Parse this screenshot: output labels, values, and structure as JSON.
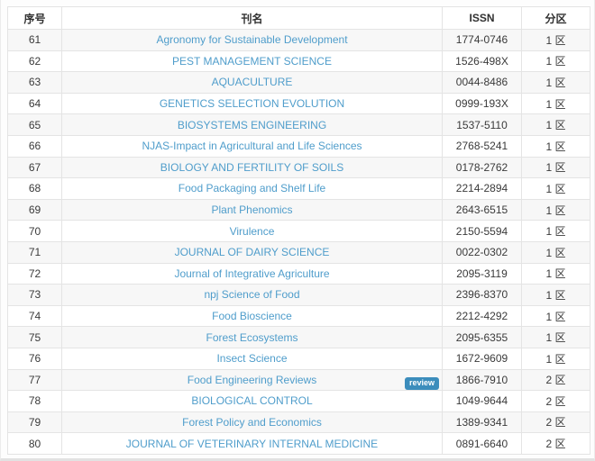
{
  "colors": {
    "link": "#4f9dcb",
    "badge_bg": "#3c8dbc",
    "stripe": "#f7f7f7",
    "border": "#e4e4e4",
    "text": "#333333"
  },
  "table": {
    "headers": {
      "index": "序号",
      "name": "刊名",
      "issn": "ISSN",
      "zone": "分区"
    },
    "rows": [
      {
        "no": "61",
        "name": "Agronomy for Sustainable Development",
        "issn": "1774-0746",
        "zone": "1 区",
        "badge": ""
      },
      {
        "no": "62",
        "name": "PEST MANAGEMENT SCIENCE",
        "issn": "1526-498X",
        "zone": "1 区",
        "badge": ""
      },
      {
        "no": "63",
        "name": "AQUACULTURE",
        "issn": "0044-8486",
        "zone": "1 区",
        "badge": ""
      },
      {
        "no": "64",
        "name": "GENETICS SELECTION EVOLUTION",
        "issn": "0999-193X",
        "zone": "1 区",
        "badge": ""
      },
      {
        "no": "65",
        "name": "BIOSYSTEMS ENGINEERING",
        "issn": "1537-5110",
        "zone": "1 区",
        "badge": ""
      },
      {
        "no": "66",
        "name": "NJAS-Impact in Agricultural and Life Sciences",
        "issn": "2768-5241",
        "zone": "1 区",
        "badge": ""
      },
      {
        "no": "67",
        "name": "BIOLOGY AND FERTILITY OF SOILS",
        "issn": "0178-2762",
        "zone": "1 区",
        "badge": ""
      },
      {
        "no": "68",
        "name": "Food Packaging and Shelf Life",
        "issn": "2214-2894",
        "zone": "1 区",
        "badge": ""
      },
      {
        "no": "69",
        "name": "Plant Phenomics",
        "issn": "2643-6515",
        "zone": "1 区",
        "badge": ""
      },
      {
        "no": "70",
        "name": "Virulence",
        "issn": "2150-5594",
        "zone": "1 区",
        "badge": ""
      },
      {
        "no": "71",
        "name": "JOURNAL OF DAIRY SCIENCE",
        "issn": "0022-0302",
        "zone": "1 区",
        "badge": ""
      },
      {
        "no": "72",
        "name": "Journal of Integrative Agriculture",
        "issn": "2095-3119",
        "zone": "1 区",
        "badge": ""
      },
      {
        "no": "73",
        "name": "npj Science of Food",
        "issn": "2396-8370",
        "zone": "1 区",
        "badge": ""
      },
      {
        "no": "74",
        "name": "Food Bioscience",
        "issn": "2212-4292",
        "zone": "1 区",
        "badge": ""
      },
      {
        "no": "75",
        "name": "Forest Ecosystems",
        "issn": "2095-6355",
        "zone": "1 区",
        "badge": ""
      },
      {
        "no": "76",
        "name": "Insect Science",
        "issn": "1672-9609",
        "zone": "1 区",
        "badge": ""
      },
      {
        "no": "77",
        "name": "Food Engineering Reviews",
        "issn": "1866-7910",
        "zone": "2 区",
        "badge": "review"
      },
      {
        "no": "78",
        "name": "BIOLOGICAL CONTROL",
        "issn": "1049-9644",
        "zone": "2 区",
        "badge": ""
      },
      {
        "no": "79",
        "name": "Forest Policy and Economics",
        "issn": "1389-9341",
        "zone": "2 区",
        "badge": ""
      },
      {
        "no": "80",
        "name": "JOURNAL OF VETERINARY INTERNAL MEDICINE",
        "issn": "0891-6640",
        "zone": "2 区",
        "badge": ""
      }
    ]
  }
}
